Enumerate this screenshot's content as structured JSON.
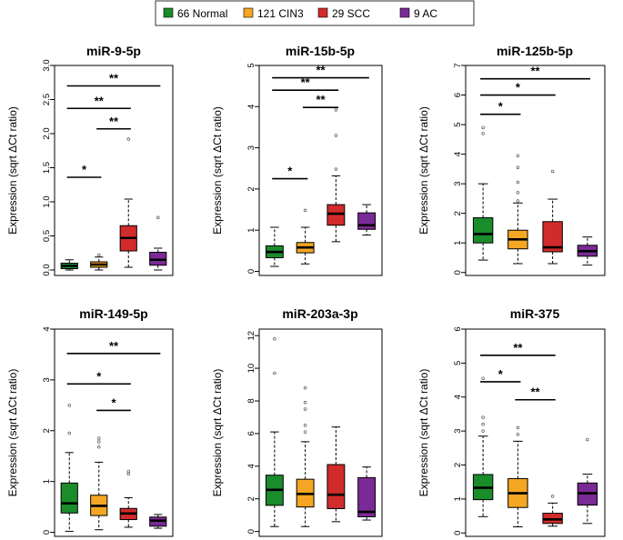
{
  "legend": {
    "items": [
      {
        "label": "66 Normal",
        "color": "#1a8c2a"
      },
      {
        "label": "121 CIN3",
        "color": "#f5a623"
      },
      {
        "label": "29 SCC",
        "color": "#d22b2b"
      },
      {
        "label": "9 AC",
        "color": "#7a2a96"
      }
    ]
  },
  "chart_data": [
    {
      "type": "box",
      "title": "miR-9-5p",
      "ylabel": "Expression (sqrt ΔCt ratio)",
      "ylim": [
        -0.08,
        3.0
      ],
      "yticks": [
        "0.0",
        "0.5",
        "1.0",
        "1.5",
        "2.0",
        "2.5",
        "3.0"
      ],
      "ytick_values": [
        0,
        0.5,
        1.0,
        1.5,
        2.0,
        2.5,
        3.0
      ],
      "groups": [
        {
          "name": "Normal",
          "whisker_low": 0.0,
          "q1": 0.02,
          "median": 0.06,
          "q3": 0.1,
          "whisker_high": 0.15,
          "outliers": []
        },
        {
          "name": "CIN3",
          "whisker_low": 0.0,
          "q1": 0.04,
          "median": 0.08,
          "q3": 0.12,
          "whisker_high": 0.19,
          "outliers": [
            0.22
          ]
        },
        {
          "name": "SCC",
          "whisker_low": 0.04,
          "q1": 0.28,
          "median": 0.47,
          "q3": 0.65,
          "whisker_high": 1.04,
          "outliers": [
            1.92
          ]
        },
        {
          "name": "AC",
          "whisker_low": 0.0,
          "q1": 0.07,
          "median": 0.15,
          "q3": 0.26,
          "whisker_high": 0.32,
          "outliers": [
            0.77
          ]
        }
      ],
      "significance": [
        {
          "from": 0,
          "to": 1,
          "y": 1.36,
          "label": "*"
        },
        {
          "from": 1,
          "to": 2,
          "y": 2.07,
          "label": "**"
        },
        {
          "from": 0,
          "to": 2,
          "y": 2.37,
          "label": "**"
        },
        {
          "from": 0,
          "to": 3,
          "y": 2.7,
          "label": "**"
        }
      ]
    },
    {
      "type": "box",
      "title": "miR-15b-5p",
      "ylabel": "Expression (sqrt ΔCt ratio)",
      "ylim": [
        -0.1,
        5.0
      ],
      "yticks": [
        "0",
        "1",
        "2",
        "3",
        "4",
        "5"
      ],
      "ytick_values": [
        0,
        1,
        2,
        3,
        4,
        5
      ],
      "groups": [
        {
          "name": "Normal",
          "whisker_low": 0.12,
          "q1": 0.33,
          "median": 0.47,
          "q3": 0.62,
          "whisker_high": 1.07,
          "outliers": []
        },
        {
          "name": "CIN3",
          "whisker_low": 0.18,
          "q1": 0.45,
          "median": 0.58,
          "q3": 0.7,
          "whisker_high": 1.07,
          "outliers": [
            1.48
          ]
        },
        {
          "name": "SCC",
          "whisker_low": 0.72,
          "q1": 1.12,
          "median": 1.4,
          "q3": 1.62,
          "whisker_high": 2.32,
          "outliers": [
            2.48,
            3.3,
            3.92
          ]
        },
        {
          "name": "AC",
          "whisker_low": 0.88,
          "q1": 1.02,
          "median": 1.12,
          "q3": 1.42,
          "whisker_high": 1.62,
          "outliers": []
        }
      ],
      "significance": [
        {
          "from": 0,
          "to": 1,
          "y": 2.25,
          "label": "*"
        },
        {
          "from": 1,
          "to": 2,
          "y": 3.98,
          "label": "**"
        },
        {
          "from": 0,
          "to": 2,
          "y": 4.4,
          "label": "**"
        },
        {
          "from": 0,
          "to": 3,
          "y": 4.7,
          "label": "**"
        }
      ]
    },
    {
      "type": "box",
      "title": "miR-125b-5p",
      "ylabel": "Expression (sqrt ΔCt ratio)",
      "ylim": [
        -0.1,
        7.0
      ],
      "yticks": [
        "0",
        "1",
        "2",
        "3",
        "4",
        "5",
        "6",
        "7"
      ],
      "ytick_values": [
        0,
        1,
        2,
        3,
        4,
        5,
        6,
        7
      ],
      "groups": [
        {
          "name": "Normal",
          "whisker_low": 0.42,
          "q1": 1.0,
          "median": 1.3,
          "q3": 1.85,
          "whisker_high": 3.0,
          "outliers": [
            4.7,
            4.9
          ]
        },
        {
          "name": "CIN3",
          "whisker_low": 0.3,
          "q1": 0.8,
          "median": 1.12,
          "q3": 1.43,
          "whisker_high": 2.35,
          "outliers": [
            2.42,
            2.7,
            3.05,
            3.55,
            3.95
          ]
        },
        {
          "name": "SCC",
          "whisker_low": 0.3,
          "q1": 0.7,
          "median": 0.85,
          "q3": 1.72,
          "whisker_high": 2.48,
          "outliers": [
            3.42
          ]
        },
        {
          "name": "AC",
          "whisker_low": 0.25,
          "q1": 0.55,
          "median": 0.72,
          "q3": 0.92,
          "whisker_high": 1.2,
          "outliers": []
        }
      ],
      "significance": [
        {
          "from": 0,
          "to": 1,
          "y": 5.35,
          "label": "*"
        },
        {
          "from": 0,
          "to": 2,
          "y": 6.0,
          "label": "*"
        },
        {
          "from": 0,
          "to": 3,
          "y": 6.55,
          "label": "**"
        }
      ]
    },
    {
      "type": "box",
      "title": "miR-149-5p",
      "ylabel": "Expression (sqrt ΔCt ratio)",
      "ylim": [
        -0.08,
        4.0
      ],
      "yticks": [
        "0",
        "1",
        "2",
        "3",
        "4"
      ],
      "ytick_values": [
        0,
        1,
        2,
        3,
        4
      ],
      "groups": [
        {
          "name": "Normal",
          "whisker_low": 0.02,
          "q1": 0.38,
          "median": 0.57,
          "q3": 0.97,
          "whisker_high": 1.57,
          "outliers": [
            1.95,
            2.5
          ]
        },
        {
          "name": "CIN3",
          "whisker_low": 0.05,
          "q1": 0.33,
          "median": 0.52,
          "q3": 0.73,
          "whisker_high": 1.38,
          "outliers": [
            1.68,
            1.78,
            1.85
          ]
        },
        {
          "name": "SCC",
          "whisker_low": 0.1,
          "q1": 0.25,
          "median": 0.37,
          "q3": 0.47,
          "whisker_high": 0.68,
          "outliers": [
            1.15,
            1.2
          ]
        },
        {
          "name": "AC",
          "whisker_low": 0.08,
          "q1": 0.12,
          "median": 0.23,
          "q3": 0.3,
          "whisker_high": 0.35,
          "outliers": []
        }
      ],
      "significance": [
        {
          "from": 1,
          "to": 2,
          "y": 2.4,
          "label": "*"
        },
        {
          "from": 0,
          "to": 2,
          "y": 2.92,
          "label": "*"
        },
        {
          "from": 0,
          "to": 3,
          "y": 3.52,
          "label": "**"
        }
      ]
    },
    {
      "type": "box",
      "title": "miR-203a-3p",
      "ylabel": "Expression (sqrt ΔCt ratio)",
      "ylim": [
        -0.3,
        12.4
      ],
      "yticks": [
        "0",
        "2",
        "4",
        "6",
        "8",
        "10",
        "12"
      ],
      "ytick_values": [
        0,
        2,
        4,
        6,
        8,
        10,
        12
      ],
      "groups": [
        {
          "name": "Normal",
          "whisker_low": 0.3,
          "q1": 1.6,
          "median": 2.55,
          "q3": 3.45,
          "whisker_high": 6.1,
          "outliers": [
            9.7,
            11.8
          ]
        },
        {
          "name": "CIN3",
          "whisker_low": 0.3,
          "q1": 1.5,
          "median": 2.3,
          "q3": 3.2,
          "whisker_high": 5.5,
          "outliers": [
            6.1,
            6.5,
            7.5,
            7.9,
            8.8
          ]
        },
        {
          "name": "SCC",
          "whisker_low": 0.6,
          "q1": 1.4,
          "median": 2.25,
          "q3": 4.1,
          "whisker_high": 6.4,
          "outliers": []
        },
        {
          "name": "AC",
          "whisker_low": 0.7,
          "q1": 0.9,
          "median": 1.2,
          "q3": 3.3,
          "whisker_high": 3.95,
          "outliers": []
        }
      ],
      "significance": []
    },
    {
      "type": "box",
      "title": "miR-375",
      "ylabel": "Expression (sqrt ΔCt ratio)",
      "ylim": [
        -0.1,
        6.0
      ],
      "yticks": [
        "0",
        "1",
        "2",
        "3",
        "4",
        "5",
        "6"
      ],
      "ytick_values": [
        0,
        1,
        2,
        3,
        4,
        5,
        6
      ],
      "groups": [
        {
          "name": "Normal",
          "whisker_low": 0.48,
          "q1": 0.98,
          "median": 1.33,
          "q3": 1.72,
          "whisker_high": 2.85,
          "outliers": [
            3.0,
            3.2,
            3.4,
            4.55
          ]
        },
        {
          "name": "CIN3",
          "whisker_low": 0.18,
          "q1": 0.75,
          "median": 1.17,
          "q3": 1.6,
          "whisker_high": 2.7,
          "outliers": [
            2.9,
            3.1
          ]
        },
        {
          "name": "SCC",
          "whisker_low": 0.2,
          "q1": 0.28,
          "median": 0.4,
          "q3": 0.58,
          "whisker_high": 0.88,
          "outliers": [
            1.08
          ]
        },
        {
          "name": "AC",
          "whisker_low": 0.28,
          "q1": 0.82,
          "median": 1.17,
          "q3": 1.47,
          "whisker_high": 1.73,
          "outliers": [
            2.75
          ]
        }
      ],
      "significance": [
        {
          "from": 1,
          "to": 2,
          "y": 3.92,
          "label": "**"
        },
        {
          "from": 0,
          "to": 1,
          "y": 4.45,
          "label": "*"
        },
        {
          "from": 0,
          "to": 2,
          "y": 5.23,
          "label": "**"
        }
      ]
    }
  ]
}
